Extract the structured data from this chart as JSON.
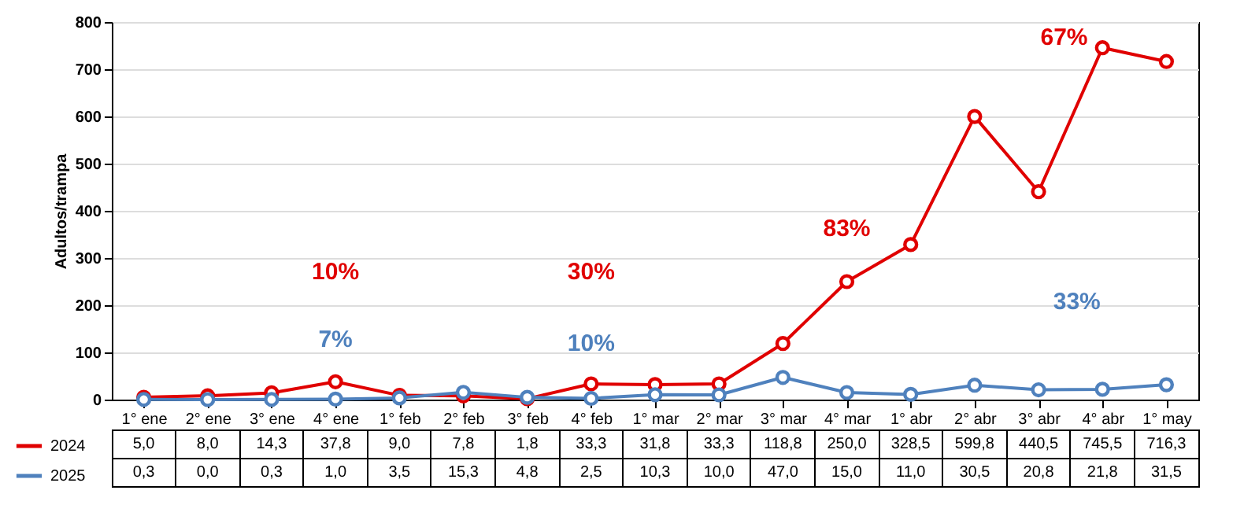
{
  "chart_data": {
    "type": "line",
    "ylabel": "Adultos/trampa",
    "categories": [
      "1° ene",
      "2° ene",
      "3° ene",
      "4° ene",
      "1° feb",
      "2° feb",
      "3° feb",
      "4° feb",
      "1° mar",
      "2° mar",
      "3° mar",
      "4° mar",
      "1° abr",
      "2° abr",
      "3° abr",
      "4° abr",
      "1° may"
    ],
    "series": [
      {
        "name": "2024",
        "color": "#e00000",
        "values": [
          5.0,
          8.0,
          14.3,
          37.8,
          9.0,
          7.8,
          1.8,
          33.3,
          31.8,
          33.3,
          118.8,
          250.0,
          328.5,
          599.8,
          440.5,
          745.5,
          716.3
        ],
        "value_labels": [
          "5,0",
          "8,0",
          "14,3",
          "37,8",
          "9,0",
          "7,8",
          "1,8",
          "33,3",
          "31,8",
          "33,3",
          "118,8",
          "250,0",
          "328,5",
          "599,8",
          "440,5",
          "745,5",
          "716,3"
        ]
      },
      {
        "name": "2025",
        "color": "#4f81bd",
        "values": [
          0.3,
          0.0,
          0.3,
          1.0,
          3.5,
          15.3,
          4.8,
          2.5,
          10.3,
          10.0,
          47.0,
          15.0,
          11.0,
          30.5,
          20.8,
          21.8,
          31.5
        ],
        "value_labels": [
          "0,3",
          "0,0",
          "0,3",
          "1,0",
          "3,5",
          "15,3",
          "4,8",
          "2,5",
          "10,3",
          "10,0",
          "47,0",
          "15,0",
          "11,0",
          "30,5",
          "20,8",
          "21,8",
          "31,5"
        ]
      }
    ],
    "ylim": [
      0,
      800
    ],
    "yticks": [
      0,
      100,
      200,
      300,
      400,
      500,
      600,
      700,
      800
    ],
    "grid": "y",
    "marker": "circle",
    "legend": "bottom left",
    "annotations": [
      "10%",
      "7%",
      "30%",
      "10%",
      "83%",
      "33%",
      "67%"
    ]
  }
}
